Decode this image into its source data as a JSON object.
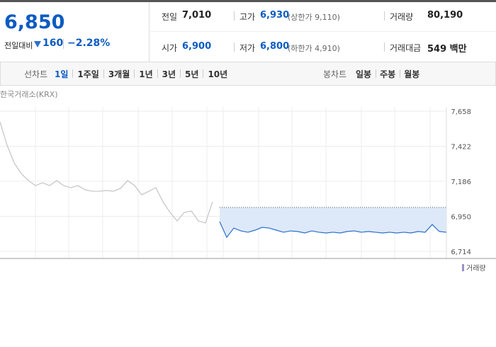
{
  "quote": {
    "price": "6,850",
    "change_label": "전일대비",
    "change": "160",
    "change_pct": "−2.28%"
  },
  "stats": [
    {
      "label": "전일",
      "value": "7,010"
    },
    {
      "label": "고가",
      "value": "6,930",
      "note": "(상한가 9,110)"
    },
    {
      "label": "거래량",
      "value": "80,190"
    },
    {
      "label": "시가",
      "value": "6,900"
    },
    {
      "label": "저가",
      "value": "6,800",
      "note": "(하한가 4,910)"
    },
    {
      "label": "거래대금",
      "value": "549 백만"
    }
  ],
  "line_tabs": {
    "label": "선차트",
    "items": [
      "1일",
      "1주일",
      "3개월",
      "1년",
      "3년",
      "5년",
      "10년"
    ]
  },
  "candle_tabs": {
    "label": "봉차트",
    "items": [
      "일봉",
      "주봉",
      "월봉"
    ]
  },
  "chart_data": {
    "type": "line",
    "source": "한국거래소(KRX)",
    "ylim": [
      6714,
      7658
    ],
    "yticks": [
      {
        "value": 7658,
        "label": "7,658"
      },
      {
        "value": 7422,
        "label": "7,422"
      },
      {
        "value": 7186,
        "label": "7,186"
      },
      {
        "value": 6950,
        "label": "6,950"
      },
      {
        "value": 6714,
        "label": "6,714"
      }
    ],
    "reference": 7010,
    "grid": true,
    "volume_legend": "거래량",
    "series": [
      {
        "color": "#c4c4c4",
        "values": [
          7586,
          7429,
          7310,
          7238,
          7191,
          7157,
          7176,
          7157,
          7191,
          7157,
          7143,
          7157,
          7129,
          7119,
          7119,
          7124,
          7119,
          7138,
          7191,
          7157,
          7095,
          7119,
          7143,
          7048,
          6976,
          6919,
          6976,
          6986,
          6919,
          6905,
          7048,
          null,
          null,
          null,
          null,
          null,
          null,
          null,
          null,
          null,
          null,
          null,
          null,
          null,
          null,
          null,
          null,
          null,
          null,
          null,
          null,
          null,
          null,
          null,
          null,
          null,
          null,
          null,
          null,
          null,
          null,
          null,
          null,
          null
        ]
      },
      {
        "color": "#2a6fce",
        "values": [
          null,
          null,
          null,
          null,
          null,
          null,
          null,
          null,
          null,
          null,
          null,
          null,
          null,
          null,
          null,
          null,
          null,
          null,
          null,
          null,
          null,
          null,
          null,
          null,
          null,
          null,
          null,
          null,
          null,
          null,
          null,
          6914,
          6809,
          6871,
          6852,
          6843,
          6857,
          6876,
          6871,
          6857,
          6843,
          6852,
          6848,
          6838,
          6852,
          6843,
          6838,
          6843,
          6838,
          6848,
          6852,
          6843,
          6848,
          6843,
          6838,
          6843,
          6838,
          6843,
          6838,
          6848,
          6843,
          6895,
          6848,
          6843
        ]
      }
    ]
  }
}
